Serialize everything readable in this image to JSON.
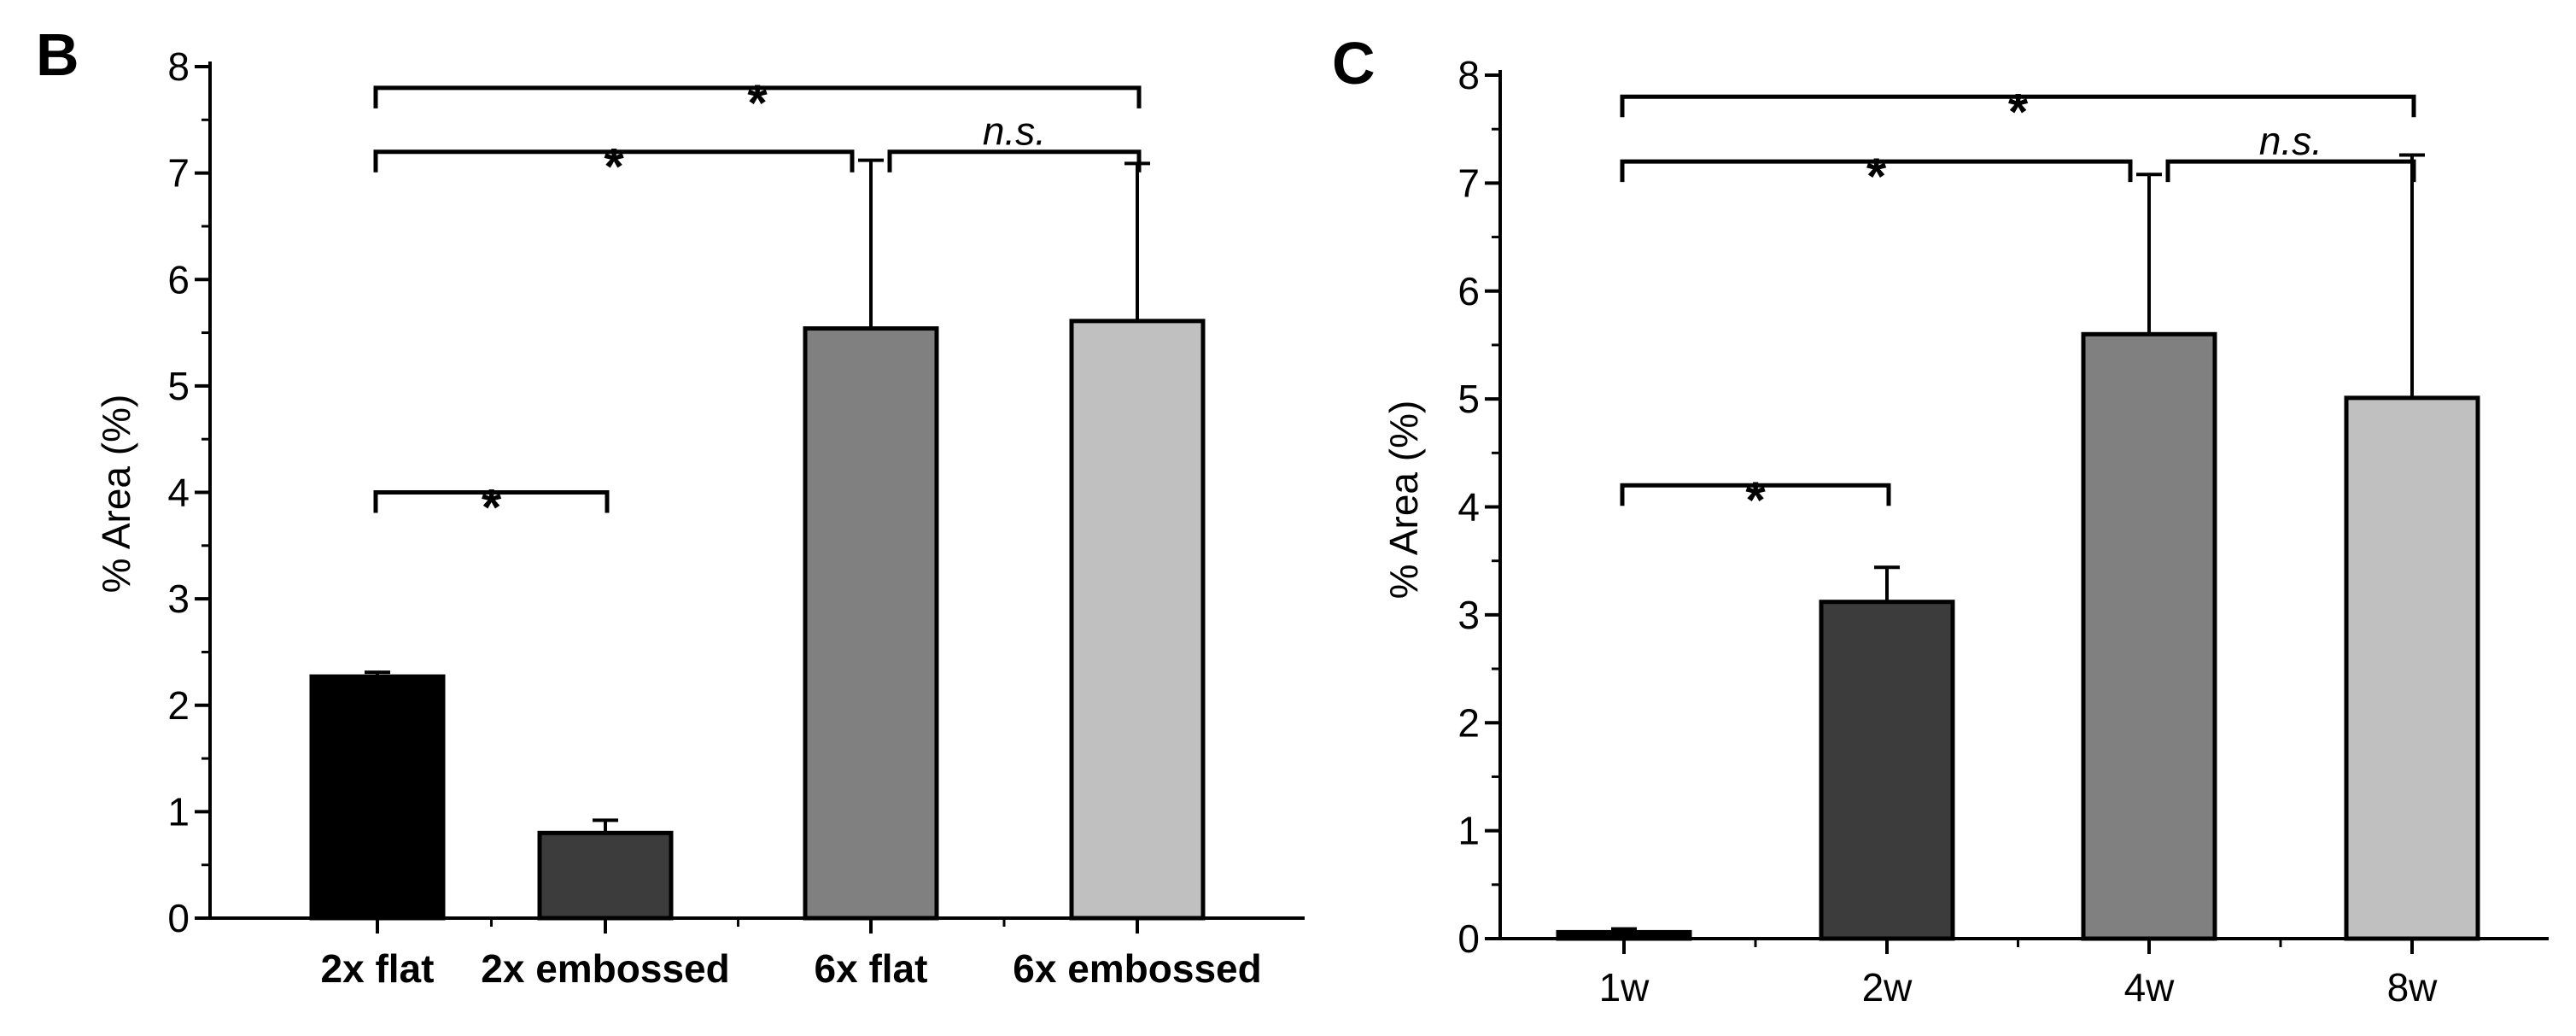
{
  "chart_data": [
    {
      "panel": "B",
      "type": "bar",
      "ylabel": "% Area (%)",
      "xlabel": "",
      "ylim": [
        0,
        8
      ],
      "yticks": [
        "0",
        "1",
        "2",
        "3",
        "4",
        "5",
        "6",
        "7",
        "8"
      ],
      "categories": [
        "2x flat",
        "2x embossed",
        "6x flat",
        "6x embossed"
      ],
      "values": [
        2.27,
        0.8,
        5.54,
        5.61
      ],
      "errors": [
        0.04,
        0.12,
        1.58,
        1.48
      ],
      "colors": [
        "#000000",
        "#3c3c3c",
        "#808080",
        "#c0c0c0"
      ],
      "annotations": [
        {
          "from": 0,
          "to": 3,
          "label": "*",
          "y": 7.8
        },
        {
          "from": 0,
          "to": 2,
          "label": "*",
          "y": 7.2
        },
        {
          "from": 2,
          "to": 3,
          "label": "n.s.",
          "y": 7.2
        },
        {
          "from": 0,
          "to": 1,
          "label": "*",
          "y": 4.0
        }
      ]
    },
    {
      "panel": "C",
      "type": "bar",
      "ylabel": "% Area (%)",
      "xlabel": "",
      "ylim": [
        0,
        8
      ],
      "yticks": [
        "0",
        "1",
        "2",
        "3",
        "4",
        "5",
        "6",
        "7",
        "8"
      ],
      "categories": [
        "1w",
        "2w",
        "4w",
        "8w"
      ],
      "values": [
        0.06,
        3.12,
        5.6,
        5.01
      ],
      "errors": [
        0.03,
        0.32,
        1.48,
        2.25
      ],
      "colors": [
        "#000000",
        "#3c3c3c",
        "#808080",
        "#c0c0c0"
      ],
      "annotations": [
        {
          "from": 0,
          "to": 3,
          "label": "*",
          "y": 7.8
        },
        {
          "from": 0,
          "to": 2,
          "label": "*",
          "y": 7.2
        },
        {
          "from": 2,
          "to": 3,
          "label": "n.s.",
          "y": 7.2
        },
        {
          "from": 0,
          "to": 1,
          "label": "*",
          "y": 4.2
        }
      ]
    }
  ]
}
